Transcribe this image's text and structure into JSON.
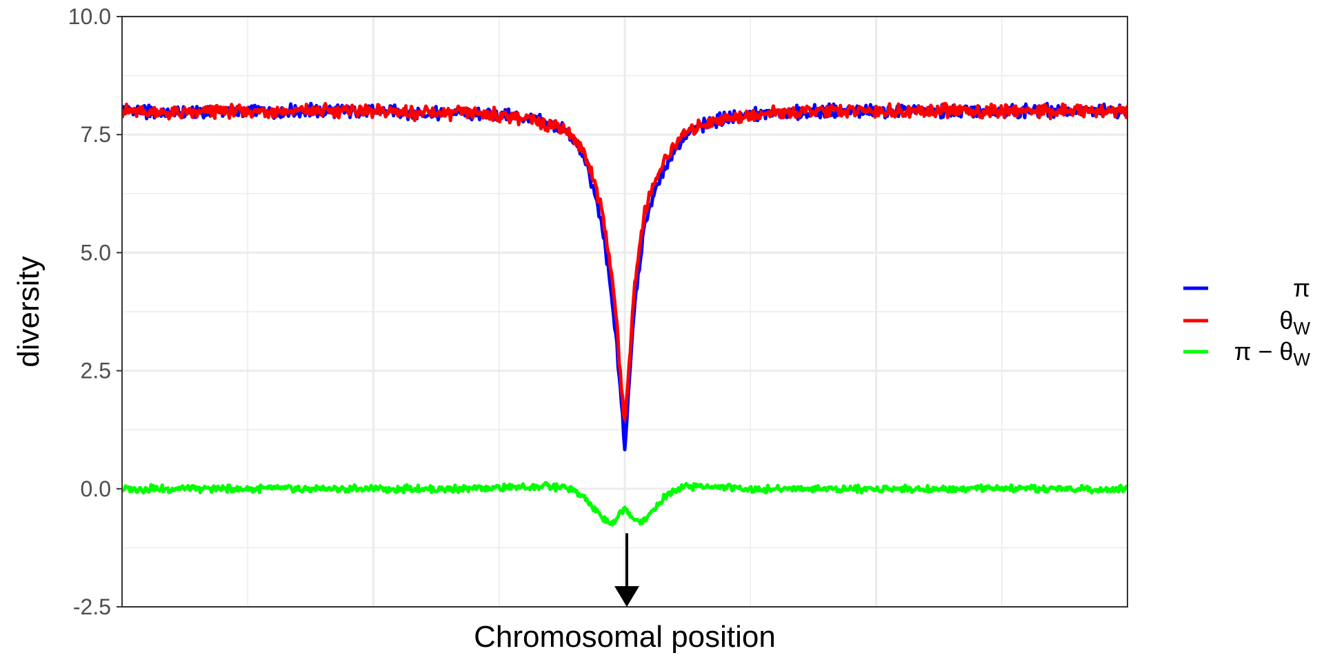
{
  "chart_data": {
    "type": "line",
    "title": "",
    "xlabel": "Chromosomal position",
    "ylabel": "diversity",
    "ylim": [
      -2.5,
      10.0
    ],
    "yticks": [
      "10.0",
      "7.5",
      "5.0",
      "2.5",
      "0.0",
      "-2.5"
    ],
    "x_ticks_labeled": false,
    "grid": true,
    "legend_position": "right",
    "x": [
      0.0,
      0.05,
      0.1,
      0.15,
      0.2,
      0.25,
      0.3,
      0.35,
      0.38,
      0.4,
      0.42,
      0.44,
      0.45,
      0.46,
      0.47,
      0.48,
      0.49,
      0.495,
      0.5,
      0.505,
      0.51,
      0.52,
      0.53,
      0.54,
      0.55,
      0.56,
      0.58,
      0.6,
      0.62,
      0.65,
      0.7,
      0.75,
      0.8,
      0.85,
      0.9,
      0.95,
      1.0
    ],
    "series": [
      {
        "name": "π",
        "color": "#0000ff",
        "values": [
          8.0,
          7.95,
          8.0,
          8.0,
          8.0,
          8.0,
          7.95,
          7.95,
          7.9,
          7.85,
          7.75,
          7.6,
          7.35,
          7.0,
          6.3,
          5.2,
          3.5,
          2.3,
          0.8,
          2.5,
          4.0,
          5.6,
          6.3,
          6.8,
          7.2,
          7.5,
          7.7,
          7.85,
          7.9,
          7.95,
          8.0,
          8.0,
          8.0,
          8.0,
          8.0,
          8.0,
          8.0
        ]
      },
      {
        "name": "θW",
        "color": "#ff0000",
        "values": [
          8.0,
          7.95,
          8.0,
          8.0,
          8.0,
          8.0,
          7.95,
          7.95,
          7.9,
          7.85,
          7.75,
          7.65,
          7.4,
          7.1,
          6.5,
          5.6,
          4.0,
          2.6,
          1.4,
          2.8,
          4.4,
          5.9,
          6.5,
          6.95,
          7.3,
          7.55,
          7.75,
          7.85,
          7.9,
          7.95,
          8.0,
          8.0,
          8.0,
          8.0,
          8.0,
          8.0,
          8.0
        ]
      },
      {
        "name": "π − θW",
        "color": "#00ff00",
        "values": [
          0.0,
          0.0,
          0.0,
          0.0,
          0.0,
          0.0,
          0.0,
          0.0,
          0.02,
          0.05,
          0.05,
          0.03,
          -0.05,
          -0.2,
          -0.45,
          -0.65,
          -0.75,
          -0.5,
          -0.4,
          -0.55,
          -0.7,
          -0.65,
          -0.4,
          -0.15,
          0.0,
          0.05,
          0.05,
          0.03,
          0.0,
          0.0,
          0.0,
          0.0,
          0.0,
          0.0,
          0.0,
          0.0,
          0.0
        ]
      }
    ],
    "legend": [
      {
        "label": "π",
        "color": "#0000ff"
      },
      {
        "label": "θ",
        "sub": "W",
        "color": "#ff0000"
      },
      {
        "label": "π − θ",
        "sub": "W",
        "color": "#00ff00"
      }
    ],
    "annotation": {
      "type": "arrow",
      "x": 0.5,
      "y_from": -1.0,
      "y_to": -2.5
    }
  }
}
